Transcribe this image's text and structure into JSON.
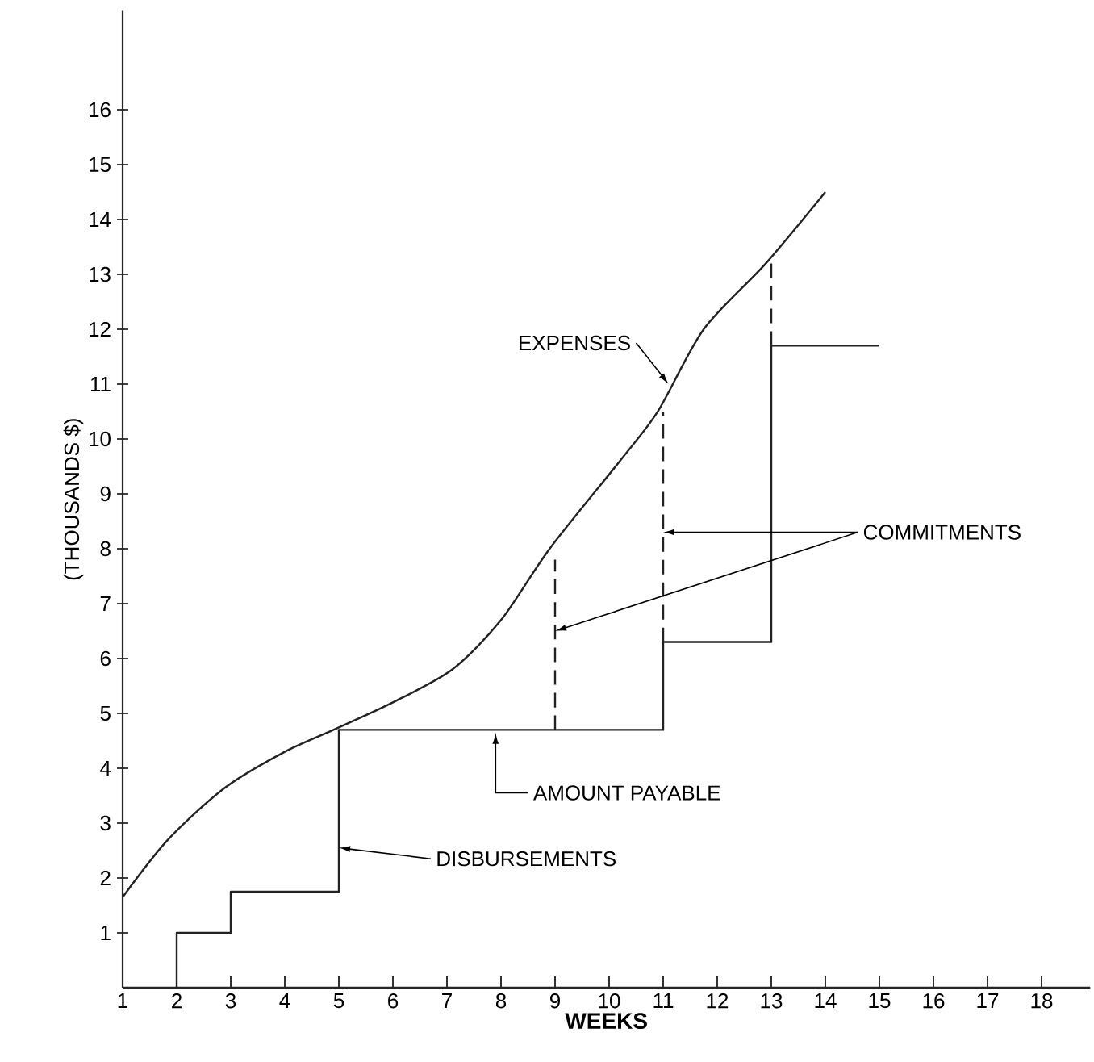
{
  "chart_data": {
    "type": "line",
    "xlabel": "WEEKS",
    "ylabel": "(THOUSANDS $)",
    "xlim": [
      1,
      18.9
    ],
    "ylim": [
      0,
      17.8
    ],
    "xticks": [
      1,
      2,
      3,
      4,
      5,
      6,
      7,
      8,
      9,
      10,
      11,
      12,
      13,
      14,
      15,
      16,
      17,
      18
    ],
    "yticks": [
      1,
      2,
      3,
      4,
      5,
      6,
      7,
      8,
      9,
      10,
      11,
      12,
      13,
      14,
      15,
      16
    ],
    "grid": false,
    "legend": false,
    "marker": "none",
    "series": [
      {
        "color": "#222222",
        "line_style": "solid",
        "x": [
          1,
          1.84,
          2.9,
          4,
          4.9,
          6,
          7.1,
          8,
          8.9,
          10.2,
          10.9,
          11.75,
          12.9,
          14
        ],
        "values": [
          1.65,
          2.7,
          3.65,
          4.3,
          4.7,
          5.2,
          5.8,
          6.7,
          8.0,
          9.6,
          10.5,
          12.0,
          13.2,
          14.5
        ]
      },
      {
        "type": "step",
        "color": "#222222",
        "line_style": "solid",
        "x": [
          2,
          2,
          3,
          5,
          11,
          13,
          15
        ],
        "values": [
          0,
          1,
          1.75,
          4.7,
          6.3,
          11.7,
          11.7
        ]
      },
      {
        "color": "#222222",
        "line_style": "dashed",
        "x": [
          9,
          9
        ],
        "values": [
          4.7,
          7.8
        ]
      },
      {
        "color": "#222222",
        "line_style": "dashed",
        "x": [
          11,
          11
        ],
        "values": [
          6.3,
          10.5
        ]
      },
      {
        "color": "#222222",
        "line_style": "dashed",
        "x": [
          13,
          13
        ],
        "values": [
          11.7,
          13.2
        ]
      }
    ],
    "annotations": [
      {
        "text": "EXPENSES",
        "x": 11.1,
        "y": 11.0
      },
      {
        "text": "COMMITMENTS",
        "x": 11,
        "y": 8.3
      },
      {
        "text": "AMOUNT PAYABLE",
        "x": 7.9,
        "y": 4.7
      },
      {
        "text": "DISBURSEMENTS",
        "x": 5,
        "y": 2.55
      }
    ]
  }
}
